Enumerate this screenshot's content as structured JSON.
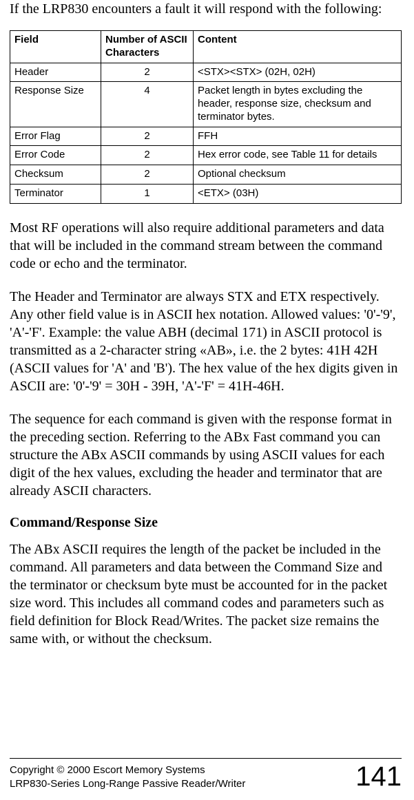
{
  "intro": "If the LRP830 encounters a fault it will respond with the following:",
  "table": {
    "headers": {
      "field": "Field",
      "num": "Number of ASCII Characters",
      "content": "Content"
    },
    "rows": [
      {
        "field": "Header",
        "num": "2",
        "content": "<STX><STX> (02H, 02H)"
      },
      {
        "field": "Response Size",
        "num": "4",
        "content": "Packet length in bytes excluding the header, response size, checksum and terminator bytes."
      },
      {
        "field": "Error Flag",
        "num": "2",
        "content": "FFH"
      },
      {
        "field": "Error Code",
        "num": "2",
        "content": "Hex error code, see Table 11 for details"
      },
      {
        "field": "Checksum",
        "num": "2",
        "content": "Optional checksum"
      },
      {
        "field": "Terminator",
        "num": "1",
        "content": "<ETX> (03H)"
      }
    ]
  },
  "para1": "Most RF operations will also require additional parameters and data that will be included in the command stream between the command code or echo and the terminator.",
  "para2": "The Header and Terminator are always STX and ETX respectively. Any other field value is in ASCII hex notation. Allowed values: '0'-'9', 'A'-'F'. Example: the value ABH (decimal 171) in ASCII protocol is transmitted as a 2-character string «AB», i.e. the 2 bytes: 41H 42H (ASCII values for 'A' and 'B').  The hex value of the hex digits given in ASCII are: '0'-'9' = 30H - 39H, 'A'-'F' = 41H-46H.",
  "para3": "The sequence for each command is given with the response format in the preceding section. Referring to the ABx Fast command you can structure the ABx ASCII commands by using ASCII values for each digit of the hex values, excluding the header and terminator that are already ASCII characters.",
  "subhead": "Command/Response Size",
  "para4": "The ABx ASCII requires the length of the packet be included in the command.  All parameters and data between the Command Size and the terminator or checksum byte must be accounted for in the packet size word.  This includes all command codes and parameters such as field definition for Block Read/Writes.  The packet size remains the same with, or without the checksum.",
  "footer": {
    "line1": "Copyright © 2000 Escort Memory Systems",
    "line2": "LRP830-Series Long-Range Passive Reader/Writer",
    "page": "141"
  }
}
